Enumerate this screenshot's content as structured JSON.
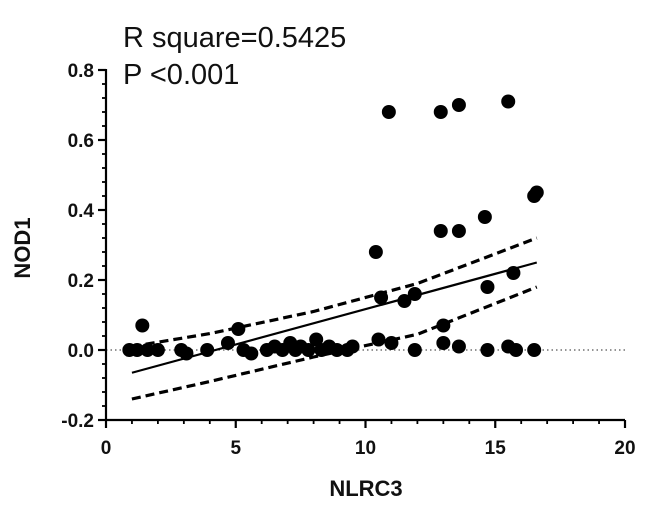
{
  "chart_data": {
    "type": "scatter",
    "annotations": [
      "R square=0.5425",
      "P <0.001"
    ],
    "xlabel": "NLRC3",
    "ylabel": "NOD1",
    "xlim": [
      0,
      20
    ],
    "ylim": [
      -0.2,
      0.8
    ],
    "x_ticks": [
      0,
      5,
      10,
      15,
      20
    ],
    "y_ticks": [
      -0.2,
      0.0,
      0.2,
      0.4,
      0.6,
      0.8
    ],
    "x_tick_labels": [
      "0",
      "5",
      "10",
      "15",
      "20"
    ],
    "y_tick_labels": [
      "-0.2",
      "0.0",
      "0.2",
      "0.4",
      "0.6",
      "0.8"
    ],
    "grid": false,
    "zero_line": true,
    "points": [
      {
        "x": 0.9,
        "y": 0.0
      },
      {
        "x": 1.2,
        "y": 0.0
      },
      {
        "x": 1.4,
        "y": 0.07
      },
      {
        "x": 1.6,
        "y": 0.0
      },
      {
        "x": 2.0,
        "y": 0.0
      },
      {
        "x": 2.9,
        "y": 0.0
      },
      {
        "x": 3.1,
        "y": -0.01
      },
      {
        "x": 3.9,
        "y": 0.0
      },
      {
        "x": 4.7,
        "y": 0.02
      },
      {
        "x": 5.1,
        "y": 0.06
      },
      {
        "x": 5.3,
        "y": 0.0
      },
      {
        "x": 5.6,
        "y": -0.01
      },
      {
        "x": 6.2,
        "y": 0.0
      },
      {
        "x": 6.5,
        "y": 0.01
      },
      {
        "x": 6.8,
        "y": 0.0
      },
      {
        "x": 7.1,
        "y": 0.02
      },
      {
        "x": 7.3,
        "y": 0.0
      },
      {
        "x": 7.5,
        "y": 0.01
      },
      {
        "x": 7.8,
        "y": 0.0
      },
      {
        "x": 8.1,
        "y": 0.03
      },
      {
        "x": 8.3,
        "y": 0.0
      },
      {
        "x": 8.6,
        "y": 0.01
      },
      {
        "x": 8.9,
        "y": 0.0
      },
      {
        "x": 9.3,
        "y": 0.0
      },
      {
        "x": 9.5,
        "y": 0.01
      },
      {
        "x": 10.4,
        "y": 0.28
      },
      {
        "x": 10.5,
        "y": 0.03
      },
      {
        "x": 10.6,
        "y": 0.15
      },
      {
        "x": 10.9,
        "y": 0.68
      },
      {
        "x": 11.0,
        "y": 0.02
      },
      {
        "x": 11.5,
        "y": 0.14
      },
      {
        "x": 11.9,
        "y": 0.16
      },
      {
        "x": 11.9,
        "y": 0.0
      },
      {
        "x": 12.9,
        "y": 0.68
      },
      {
        "x": 12.9,
        "y": 0.34
      },
      {
        "x": 13.0,
        "y": 0.07
      },
      {
        "x": 13.0,
        "y": 0.02
      },
      {
        "x": 13.6,
        "y": 0.7
      },
      {
        "x": 13.6,
        "y": 0.34
      },
      {
        "x": 13.6,
        "y": 0.01
      },
      {
        "x": 14.6,
        "y": 0.38
      },
      {
        "x": 14.7,
        "y": 0.18
      },
      {
        "x": 14.7,
        "y": 0.0
      },
      {
        "x": 15.5,
        "y": 0.71
      },
      {
        "x": 15.5,
        "y": 0.01
      },
      {
        "x": 15.7,
        "y": 0.22
      },
      {
        "x": 15.8,
        "y": 0.0
      },
      {
        "x": 16.5,
        "y": 0.44
      },
      {
        "x": 16.6,
        "y": 0.45
      },
      {
        "x": 16.5,
        "y": 0.0
      }
    ],
    "fit_line": {
      "x": [
        1.0,
        16.6
      ],
      "y": [
        -0.065,
        0.25
      ]
    },
    "ci_upper": {
      "x": [
        1.0,
        4.0,
        8.0,
        12.0,
        16.6
      ],
      "y": [
        0.01,
        0.047,
        0.11,
        0.19,
        0.32
      ]
    },
    "ci_lower": {
      "x": [
        1.0,
        4.0,
        8.0,
        12.0,
        16.6
      ],
      "y": [
        -0.14,
        -0.09,
        -0.02,
        0.045,
        0.18
      ]
    },
    "colors": {
      "marker": "#000000",
      "line": "#000000",
      "zero_line": "#555555"
    }
  }
}
